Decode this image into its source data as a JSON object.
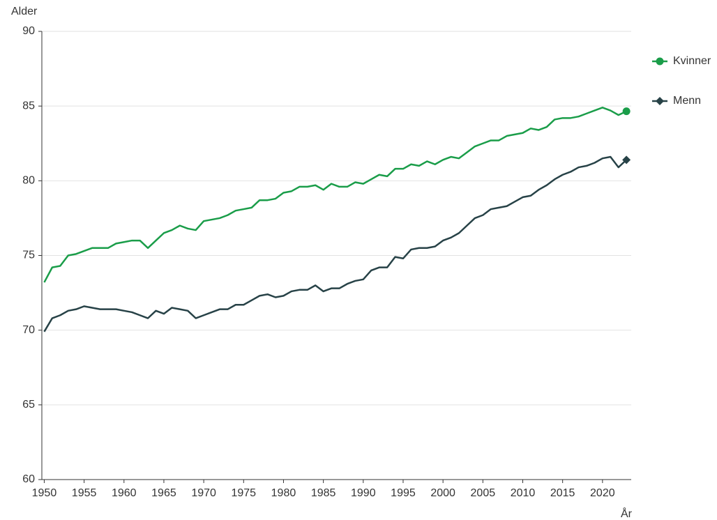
{
  "chart_data": {
    "type": "line",
    "ylabel": "Alder",
    "xlabel": "År",
    "x": [
      1950,
      1951,
      1952,
      1953,
      1954,
      1955,
      1956,
      1957,
      1958,
      1959,
      1960,
      1961,
      1962,
      1963,
      1964,
      1965,
      1966,
      1967,
      1968,
      1969,
      1970,
      1971,
      1972,
      1973,
      1974,
      1975,
      1976,
      1977,
      1978,
      1979,
      1980,
      1981,
      1982,
      1983,
      1984,
      1985,
      1986,
      1987,
      1988,
      1989,
      1990,
      1991,
      1992,
      1993,
      1994,
      1995,
      1996,
      1997,
      1998,
      1999,
      2000,
      2001,
      2002,
      2003,
      2004,
      2005,
      2006,
      2007,
      2008,
      2009,
      2010,
      2011,
      2012,
      2013,
      2014,
      2015,
      2016,
      2017,
      2018,
      2019,
      2020,
      2021,
      2022,
      2023
    ],
    "series": [
      {
        "name": "Kvinner",
        "color": "#1a9d49",
        "marker": "circle",
        "values": [
          73.2,
          74.2,
          74.3,
          75.0,
          75.1,
          75.3,
          75.5,
          75.5,
          75.5,
          75.8,
          75.9,
          76.0,
          76.0,
          75.5,
          76.0,
          76.5,
          76.7,
          77.0,
          76.8,
          76.7,
          77.3,
          77.4,
          77.5,
          77.7,
          78.0,
          78.1,
          78.2,
          78.7,
          78.7,
          78.8,
          79.2,
          79.3,
          79.6,
          79.6,
          79.7,
          79.4,
          79.8,
          79.6,
          79.6,
          79.9,
          79.8,
          80.1,
          80.4,
          80.3,
          80.8,
          80.8,
          81.1,
          81.0,
          81.3,
          81.1,
          81.4,
          81.6,
          81.5,
          81.9,
          82.3,
          82.5,
          82.7,
          82.7,
          83.0,
          83.1,
          83.2,
          83.5,
          83.4,
          83.6,
          84.1,
          84.2,
          84.2,
          84.3,
          84.5,
          84.7,
          84.9,
          84.7,
          84.4,
          84.65
        ]
      },
      {
        "name": "Menn",
        "color": "#274247",
        "marker": "diamond",
        "values": [
          69.9,
          70.8,
          71.0,
          71.3,
          71.4,
          71.6,
          71.5,
          71.4,
          71.4,
          71.4,
          71.3,
          71.2,
          71.0,
          70.8,
          71.3,
          71.1,
          71.5,
          71.4,
          71.3,
          70.8,
          71.0,
          71.2,
          71.4,
          71.4,
          71.7,
          71.7,
          72.0,
          72.3,
          72.4,
          72.2,
          72.3,
          72.6,
          72.7,
          72.7,
          73.0,
          72.6,
          72.8,
          72.8,
          73.1,
          73.3,
          73.4,
          74.0,
          74.2,
          74.2,
          74.9,
          74.8,
          75.4,
          75.5,
          75.5,
          75.6,
          76.0,
          76.2,
          76.5,
          77.0,
          77.5,
          77.7,
          78.1,
          78.2,
          78.3,
          78.6,
          78.9,
          79.0,
          79.4,
          79.7,
          80.1,
          80.4,
          80.6,
          80.9,
          81.0,
          81.2,
          81.5,
          81.6,
          80.9,
          81.4
        ]
      }
    ],
    "xlim": [
      1949.7,
      2023.6
    ],
    "xticks": [
      1950,
      1955,
      1960,
      1965,
      1970,
      1975,
      1980,
      1985,
      1990,
      1995,
      2000,
      2005,
      2010,
      2015,
      2020
    ],
    "ylim": [
      60,
      90
    ],
    "yticks": [
      60,
      65,
      70,
      75,
      80,
      85,
      90
    ],
    "grid": true,
    "legend": "right"
  }
}
